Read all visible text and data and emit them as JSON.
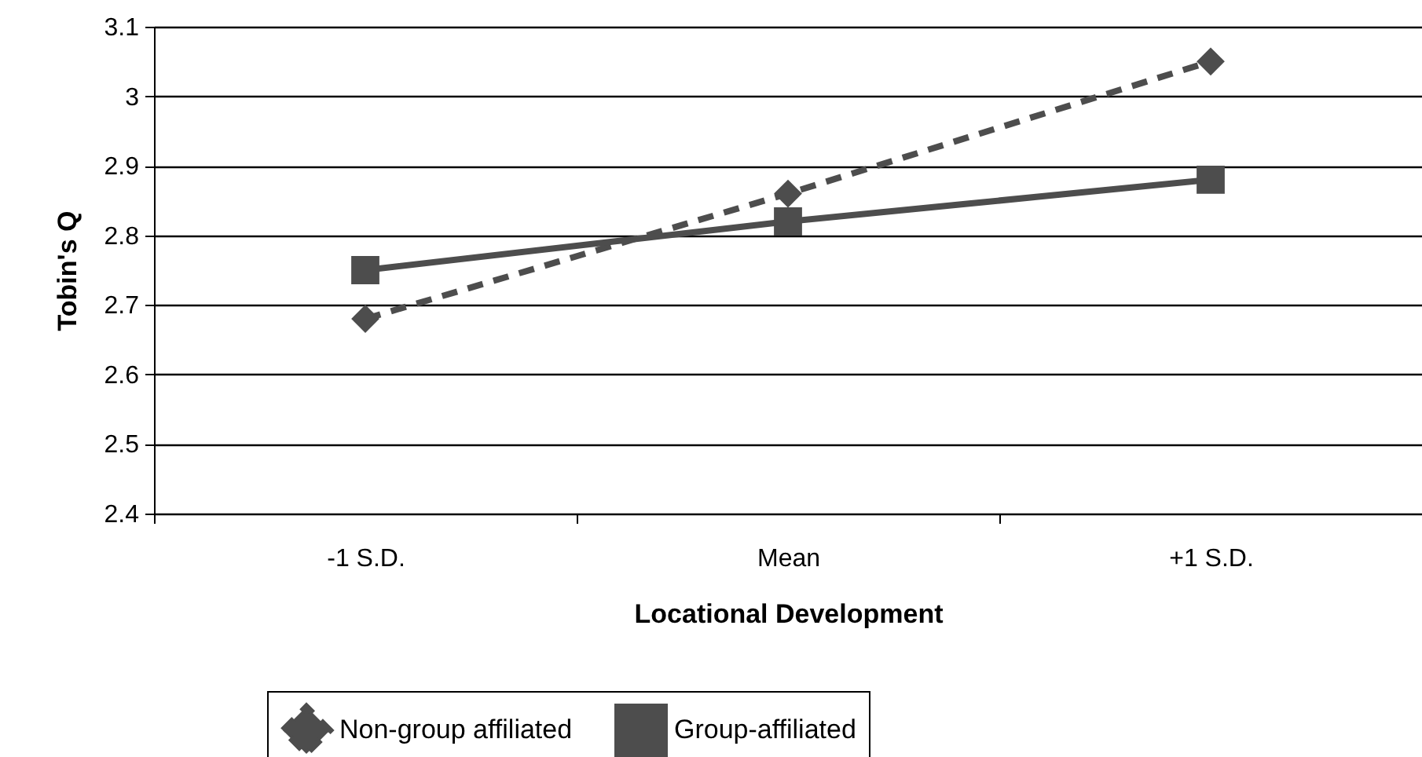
{
  "chart_data": {
    "type": "line",
    "xlabel": "Locational Development",
    "ylabel": "Tobin's Q",
    "categories": [
      "-1 S.D.",
      "Mean",
      "+1 S.D."
    ],
    "series": [
      {
        "name": "Non-group affiliated",
        "color": "#4d4d4d",
        "values": [
          2.68,
          2.86,
          3.05
        ],
        "marker": "diamond",
        "line_style": "dashed"
      },
      {
        "name": "Group-affiliated",
        "color": "#4d4d4d",
        "values": [
          2.75,
          2.82,
          2.88
        ],
        "marker": "square",
        "line_style": "solid"
      }
    ],
    "ylim": [
      2.4,
      3.1
    ],
    "yticks": [
      2.4,
      2.5,
      2.6,
      2.7,
      2.8,
      2.9,
      3,
      3.1
    ],
    "grid": "y",
    "legend": "bottom"
  }
}
